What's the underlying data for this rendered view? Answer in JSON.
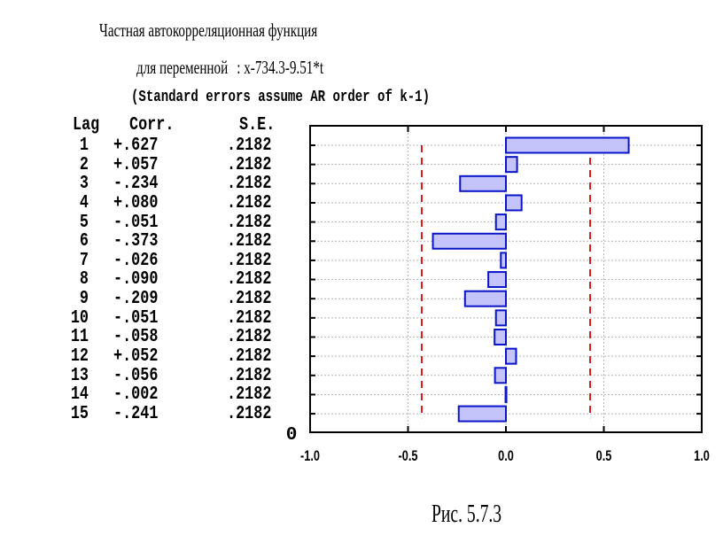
{
  "title": "Частная автокорреляционная функция",
  "subtitle_prefix": "для переменной",
  "subtitle_var": ": x-734.3-9.51*t",
  "note": "(Standard errors assume AR order of k-1)",
  "table": {
    "headers": {
      "lag": "Lag",
      "corr": "Corr.",
      "se": "S.E."
    },
    "rows": [
      {
        "lag": "1",
        "corr": "+.627",
        "se": ".2182"
      },
      {
        "lag": "2",
        "corr": "+.057",
        "se": ".2182"
      },
      {
        "lag": "3",
        "corr": "-.234",
        "se": ".2182"
      },
      {
        "lag": "4",
        "corr": "+.080",
        "se": ".2182"
      },
      {
        "lag": "5",
        "corr": "-.051",
        "se": ".2182"
      },
      {
        "lag": "6",
        "corr": "-.373",
        "se": ".2182"
      },
      {
        "lag": "7",
        "corr": "-.026",
        "se": ".2182"
      },
      {
        "lag": "8",
        "corr": "-.090",
        "se": ".2182"
      },
      {
        "lag": "9",
        "corr": "-.209",
        "se": ".2182"
      },
      {
        "lag": "10",
        "corr": "-.051",
        "se": ".2182"
      },
      {
        "lag": "11",
        "corr": "-.058",
        "se": ".2182"
      },
      {
        "lag": "12",
        "corr": "+.052",
        "se": ".2182"
      },
      {
        "lag": "13",
        "corr": "-.056",
        "se": ".2182"
      },
      {
        "lag": "14",
        "corr": "-.002",
        "se": ".2182"
      },
      {
        "lag": "15",
        "corr": "-.241",
        "se": ".2182"
      }
    ]
  },
  "chart_data": {
    "type": "bar",
    "orientation": "horizontal",
    "categories": [
      1,
      2,
      3,
      4,
      5,
      6,
      7,
      8,
      9,
      10,
      11,
      12,
      13,
      14,
      15
    ],
    "values": [
      0.627,
      0.057,
      -0.234,
      0.08,
      -0.051,
      -0.373,
      -0.026,
      -0.09,
      -0.209,
      -0.051,
      -0.058,
      0.052,
      -0.056,
      -0.002,
      -0.241
    ],
    "xlim": [
      -1.0,
      1.0
    ],
    "x_ticks": [
      "-1.0",
      "-0.5",
      "0.0",
      "0.5",
      "1.0"
    ],
    "y_zero_label": "0",
    "confidence_limits": [
      -0.43,
      0.43
    ],
    "grid": true,
    "colors": {
      "bar_fill": "#c4c4fa",
      "bar_edge": "#0a14c8",
      "limit_line": "#e01818",
      "grid": "#b4b4b4"
    }
  },
  "caption": "Рис. 5.7.3"
}
